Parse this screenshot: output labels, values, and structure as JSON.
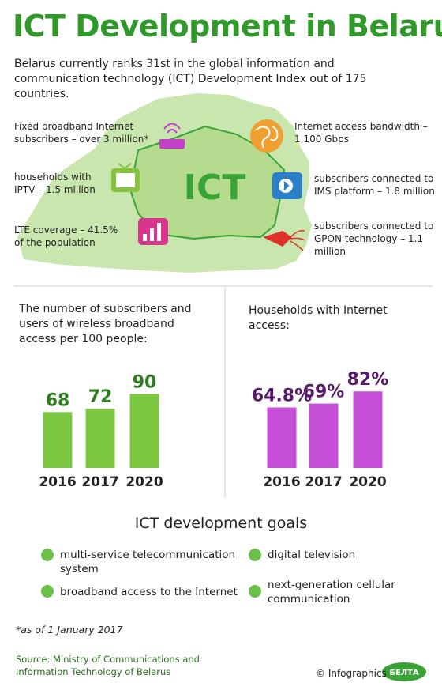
{
  "header": {
    "title": "ICT Development in Belarus",
    "intro": "Belarus currently ranks 31st in the global information and communication technology (ICT) Development Index out of 175 countries."
  },
  "map": {
    "center_label": "ICT",
    "annotations": [
      "Fixed broadband Internet subscribers – over 3 million*",
      "households with IPTV – 1.5 million",
      "LTE coverage – 41.5% of the population",
      "Internet access bandwidth – 1,100 Gbps",
      "subscribers connected to IMS platform – 1.8 million",
      "subscribers connected to GPON technology – 1.1 million"
    ]
  },
  "chart_data": [
    {
      "type": "bar",
      "title": "The number of subscribers and users of wireless broadband access per 100 people:",
      "categories": [
        "2016",
        "2017",
        "2020"
      ],
      "values": [
        68,
        72,
        90
      ],
      "color": "#7dc843"
    },
    {
      "type": "bar",
      "title": "Households with Internet access:",
      "categories": [
        "2016",
        "2017",
        "2020"
      ],
      "values": [
        64.8,
        69,
        82
      ],
      "value_labels": [
        "64.8%",
        "69%",
        "82%"
      ],
      "color": "#c54fd6"
    }
  ],
  "goals": {
    "title": "ICT development goals",
    "items": [
      "multi-service telecommunication system",
      "digital television",
      "broadband access to the Internet",
      "next-generation cellular communication"
    ]
  },
  "footer": {
    "footnote": "*as of 1 January 2017",
    "source": "Source: Ministry of Communications and Information Technology of Belarus",
    "copyright": "© Infographics",
    "logo": "БЕЛТА"
  }
}
